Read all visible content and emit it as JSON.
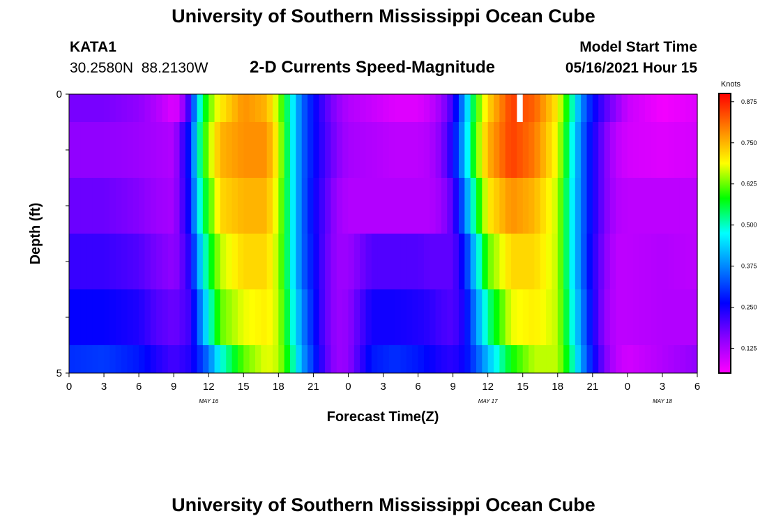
{
  "header": {
    "title": "University of Southern Mississippi Ocean Cube",
    "station": "KATA1",
    "coords": "30.2580N  88.2130W",
    "chart_title": "2-D Currents Speed-Magnitude",
    "model_start_label": "Model Start Time",
    "model_start_value": "05/16/2021 Hour 15"
  },
  "footer": {
    "title": "University of Southern Mississippi Ocean Cube"
  },
  "colors": {
    "colormap": [
      "#ff00ff",
      "#8a00ff",
      "#0000ff",
      "#0080ff",
      "#00ffff",
      "#00ff00",
      "#ffff00",
      "#ff8000",
      "#ff0000"
    ]
  },
  "chart_data": {
    "type": "heatmap",
    "title": "2-D Currents Speed-Magnitude",
    "xlabel": "Forecast Time(Z)",
    "ylabel": "Depth (ft)",
    "ylim": [
      0,
      5
    ],
    "y_tick_labels": [
      "0",
      "5"
    ],
    "x_hours_range": [
      0,
      54
    ],
    "x_tick_labels": [
      "0",
      "3",
      "6",
      "9",
      "12",
      "15",
      "18",
      "21",
      "0",
      "3",
      "6",
      "9",
      "12",
      "15",
      "18",
      "21",
      "0",
      "3",
      "6"
    ],
    "date_labels": [
      {
        "hour": 12,
        "label": "MAY 16"
      },
      {
        "hour": 36,
        "label": "MAY 17"
      },
      {
        "hour": 51,
        "label": "MAY 18"
      }
    ],
    "colorbar": {
      "label": "Knots",
      "range": [
        0.05,
        0.9
      ],
      "ticks": [
        "0.875",
        "0.750",
        "0.625",
        "0.500",
        "0.375",
        "0.250",
        "0.125"
      ]
    },
    "depth_edges_ft": [
      0,
      0.5,
      1.5,
      2.5,
      3.5,
      4.5,
      5
    ],
    "key_hours": [
      0,
      3,
      6,
      7.5,
      9,
      9.5,
      10.5,
      11,
      12,
      13,
      15,
      17,
      18,
      19,
      20,
      21,
      22,
      23,
      24,
      26,
      28,
      30,
      31,
      32,
      33,
      34,
      35,
      36,
      38,
      40,
      42,
      43,
      44,
      45,
      46,
      47,
      48,
      51,
      54
    ],
    "speed_by_depth": [
      [
        0.17,
        0.17,
        0.15,
        0.12,
        0.08,
        0.1,
        0.25,
        0.45,
        0.62,
        0.7,
        0.78,
        0.75,
        0.65,
        0.5,
        0.35,
        0.27,
        0.2,
        0.15,
        0.12,
        0.1,
        0.08,
        0.08,
        0.1,
        0.14,
        0.22,
        0.4,
        0.6,
        0.72,
        0.85,
        0.82,
        0.7,
        0.55,
        0.38,
        0.27,
        0.2,
        0.15,
        0.1,
        0.06,
        0.08
      ],
      [
        0.15,
        0.15,
        0.14,
        0.13,
        0.12,
        0.18,
        0.3,
        0.48,
        0.65,
        0.75,
        0.78,
        0.78,
        0.68,
        0.5,
        0.35,
        0.27,
        0.21,
        0.16,
        0.13,
        0.12,
        0.11,
        0.11,
        0.12,
        0.16,
        0.25,
        0.42,
        0.62,
        0.75,
        0.85,
        0.8,
        0.68,
        0.52,
        0.36,
        0.25,
        0.17,
        0.11,
        0.09,
        0.08,
        0.09
      ],
      [
        0.18,
        0.18,
        0.16,
        0.14,
        0.13,
        0.18,
        0.28,
        0.45,
        0.6,
        0.72,
        0.75,
        0.75,
        0.66,
        0.5,
        0.35,
        0.26,
        0.2,
        0.14,
        0.12,
        0.12,
        0.12,
        0.12,
        0.12,
        0.14,
        0.2,
        0.36,
        0.55,
        0.7,
        0.78,
        0.75,
        0.66,
        0.5,
        0.36,
        0.25,
        0.17,
        0.12,
        0.11,
        0.11,
        0.11
      ],
      [
        0.22,
        0.22,
        0.2,
        0.17,
        0.15,
        0.17,
        0.25,
        0.38,
        0.55,
        0.66,
        0.72,
        0.72,
        0.65,
        0.5,
        0.35,
        0.27,
        0.19,
        0.14,
        0.14,
        0.2,
        0.2,
        0.2,
        0.19,
        0.19,
        0.19,
        0.28,
        0.45,
        0.62,
        0.72,
        0.72,
        0.66,
        0.5,
        0.36,
        0.24,
        0.16,
        0.11,
        0.11,
        0.12,
        0.11
      ],
      [
        0.26,
        0.26,
        0.24,
        0.2,
        0.18,
        0.19,
        0.22,
        0.32,
        0.48,
        0.62,
        0.68,
        0.7,
        0.66,
        0.52,
        0.38,
        0.28,
        0.19,
        0.14,
        0.15,
        0.25,
        0.25,
        0.24,
        0.23,
        0.21,
        0.2,
        0.25,
        0.38,
        0.52,
        0.68,
        0.7,
        0.66,
        0.52,
        0.38,
        0.25,
        0.15,
        0.11,
        0.11,
        0.12,
        0.12
      ],
      [
        0.3,
        0.31,
        0.28,
        0.24,
        0.21,
        0.22,
        0.24,
        0.28,
        0.36,
        0.48,
        0.62,
        0.68,
        0.66,
        0.55,
        0.4,
        0.3,
        0.2,
        0.14,
        0.15,
        0.28,
        0.3,
        0.28,
        0.26,
        0.24,
        0.23,
        0.26,
        0.33,
        0.42,
        0.58,
        0.66,
        0.66,
        0.55,
        0.4,
        0.27,
        0.17,
        0.11,
        0.09,
        0.12,
        0.15
      ]
    ],
    "missing_cells": [
      {
        "hour": 38.5,
        "depth_row": 0
      }
    ]
  }
}
